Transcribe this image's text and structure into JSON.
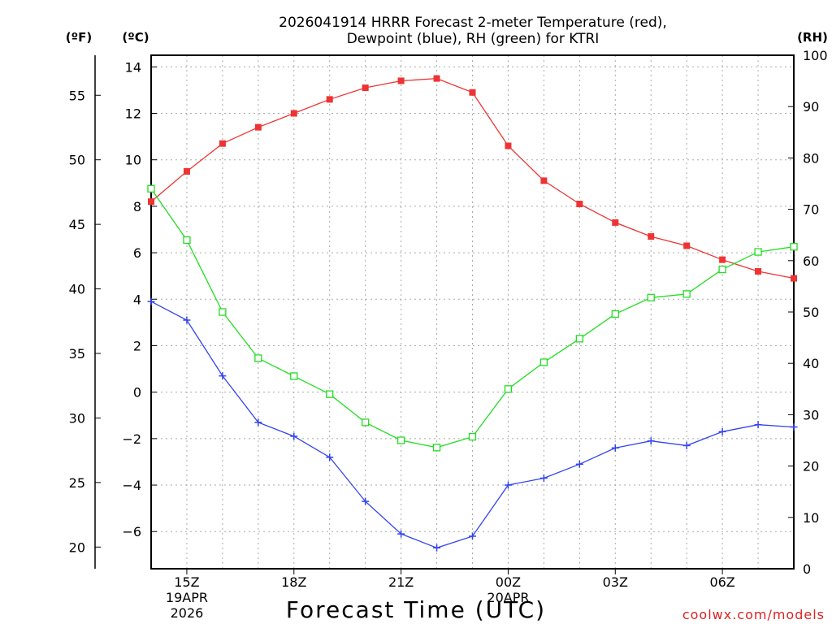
{
  "chart_data": {
    "type": "line",
    "title_line1": "2026041914 HRRR Forecast 2-meter Temperature (red),",
    "title_line2": "Dewpoint (blue), RH (green) for KTRI",
    "xlabel": "Forecast Time (UTC)",
    "left_axis_f_label": "(ºF)",
    "left_axis_c_label": "(ºC)",
    "right_axis_label": "(RH)",
    "credit": "coolwx.com/models",
    "hours": [
      14,
      15,
      16,
      17,
      18,
      19,
      20,
      21,
      22,
      23,
      24,
      25,
      26,
      27,
      28,
      29,
      30,
      31,
      32
    ],
    "xlim": [
      14,
      32
    ],
    "x_ticks": [
      {
        "hour": 15,
        "line1": "15Z",
        "line2": "19APR",
        "line3": "2026"
      },
      {
        "hour": 18,
        "line1": "18Z",
        "line2": "",
        "line3": ""
      },
      {
        "hour": 21,
        "line1": "21Z",
        "line2": "",
        "line3": ""
      },
      {
        "hour": 24,
        "line1": "00Z",
        "line2": "20APR",
        "line3": ""
      },
      {
        "hour": 27,
        "line1": "03Z",
        "line2": "",
        "line3": ""
      },
      {
        "hour": 30,
        "line1": "06Z",
        "line2": "",
        "line3": ""
      }
    ],
    "celsius_axis": {
      "ylim": [
        -7.6,
        14.5
      ],
      "ticks": [
        -6,
        -4,
        -2,
        0,
        2,
        4,
        6,
        8,
        10,
        12,
        14
      ]
    },
    "fahrenheit_ticks": [
      20,
      25,
      30,
      35,
      40,
      45,
      50,
      55
    ],
    "rh_axis": {
      "ylim": [
        0,
        100
      ],
      "ticks": [
        0,
        10,
        20,
        30,
        40,
        50,
        60,
        70,
        80,
        90,
        100
      ]
    },
    "series": [
      {
        "name": "Temperature",
        "unit": "C",
        "color": "#ee3333",
        "values": [
          8.2,
          9.5,
          10.7,
          11.4,
          12.0,
          12.6,
          13.1,
          13.4,
          13.5,
          12.9,
          10.6,
          9.1,
          8.1,
          7.3,
          6.7,
          6.3,
          5.7,
          5.2,
          4.9
        ]
      },
      {
        "name": "Dewpoint",
        "unit": "C",
        "color": "#3344ee",
        "values": [
          3.9,
          3.1,
          0.7,
          -1.3,
          -1.9,
          -2.8,
          -4.7,
          -6.1,
          -6.7,
          -6.2,
          -4.0,
          -3.7,
          -3.1,
          -2.4,
          -2.1,
          -2.3,
          -1.7,
          -1.4,
          -1.5
        ]
      },
      {
        "name": "RH",
        "unit": "%",
        "color": "#22dd22",
        "values": [
          74,
          64,
          50,
          41,
          37.5,
          34,
          28.5,
          25,
          23.6,
          25.7,
          35,
          40.2,
          44.8,
          49.6,
          52.8,
          53.5,
          58.3,
          61.7,
          62.7
        ]
      }
    ]
  }
}
